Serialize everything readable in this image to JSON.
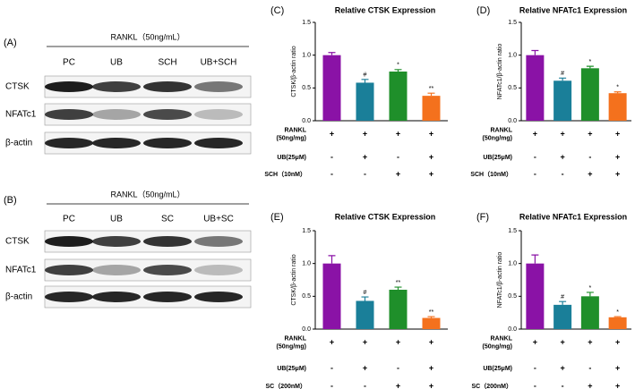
{
  "blots": [
    {
      "panel": "(A)",
      "header": "RANKL（50ng/mL）",
      "lanes": [
        "PC",
        "UB",
        "SCH",
        "UB+SCH"
      ],
      "rows": [
        "CTSK",
        "NFATc1",
        "β-actin"
      ]
    },
    {
      "panel": "(B)",
      "header": "RANKL（50ng/mL）",
      "lanes": [
        "PC",
        "UB",
        "SC",
        "UB+SC"
      ],
      "rows": [
        "CTSK",
        "NFATc1",
        "β-actin"
      ]
    }
  ],
  "chart_data": [
    {
      "type": "bar",
      "panel": "(C)",
      "title": "Relative CTSK  Expression",
      "ylabel": "CTSK/β-actin ratio",
      "categories": [
        null,
        null,
        null,
        null
      ],
      "series": [
        {
          "colors": [
            "#8a12a6",
            "#1a7f99",
            "#1f8f2a",
            "#f4711d"
          ],
          "values": [
            1.0,
            0.58,
            0.75,
            0.38
          ],
          "errors": [
            0.04,
            0.05,
            0.03,
            0.04
          ],
          "annotations": [
            null,
            "#",
            "*",
            "**"
          ]
        }
      ],
      "ylim": [
        0,
        1.5
      ],
      "yticks": [
        {
          "value": 0,
          "label": "0.0"
        },
        {
          "value": 0.5,
          "label": "0.5"
        },
        {
          "value": 1,
          "label": "1.0"
        },
        {
          "value": 1.5,
          "label": "1.5"
        }
      ],
      "treatments": [
        {
          "label": [
            "RANKL",
            "(50ng/mg)"
          ],
          "signs": [
            "+",
            "+",
            "+",
            "+"
          ]
        },
        {
          "label": [
            "UB(25μM)"
          ],
          "signs": [
            "-",
            "+",
            "-",
            "+"
          ]
        },
        {
          "label": [
            "SCH（10nM）"
          ],
          "signs": [
            "-",
            "-",
            "+",
            "+"
          ]
        }
      ]
    },
    {
      "type": "bar",
      "panel": "(D)",
      "title": "Relative NFATc1 Expression",
      "ylabel": "NFATc1/β-actin ratio",
      "categories": [
        null,
        null,
        null,
        null
      ],
      "series": [
        {
          "colors": [
            "#8a12a6",
            "#1a7f99",
            "#1f8f2a",
            "#f4711d"
          ],
          "values": [
            1.0,
            0.61,
            0.8,
            0.42
          ],
          "errors": [
            0.07,
            0.04,
            0.03,
            0.02
          ],
          "annotations": [
            null,
            "#",
            "*",
            "*"
          ]
        }
      ],
      "ylim": [
        0,
        1.5
      ],
      "yticks": [
        {
          "value": 0,
          "label": "0.0"
        },
        {
          "value": 0.5,
          "label": "0.5"
        },
        {
          "value": 1,
          "label": "1.0"
        },
        {
          "value": 1.5,
          "label": "1.5"
        }
      ],
      "treatments": [
        {
          "label": [
            "RANKL",
            "(50ng/mg)"
          ],
          "signs": [
            "+",
            "+",
            "+",
            "+"
          ]
        },
        {
          "label": [
            "UB(25μM)"
          ],
          "signs": [
            "-",
            "+",
            "-",
            "+"
          ]
        },
        {
          "label": [
            "SCH（10nM）"
          ],
          "signs": [
            "-",
            "-",
            "+",
            "+"
          ]
        }
      ]
    },
    {
      "type": "bar",
      "panel": "(E)",
      "title": "Relative CTSK  Expression",
      "ylabel": "CTSK/β-actin ratio",
      "categories": [
        null,
        null,
        null,
        null
      ],
      "series": [
        {
          "colors": [
            "#8a12a6",
            "#1a7f99",
            "#1f8f2a",
            "#f4711d"
          ],
          "values": [
            1.0,
            0.43,
            0.6,
            0.17
          ],
          "errors": [
            0.12,
            0.06,
            0.04,
            0.02
          ],
          "annotations": [
            null,
            "#",
            "**",
            "**"
          ]
        }
      ],
      "ylim": [
        0,
        1.5
      ],
      "yticks": [
        {
          "value": 0,
          "label": "0.0"
        },
        {
          "value": 0.5,
          "label": "0.5"
        },
        {
          "value": 1,
          "label": "1.0"
        },
        {
          "value": 1.5,
          "label": "1.5"
        }
      ],
      "treatments": [
        {
          "label": [
            "RANKL",
            "(50ng/mg)"
          ],
          "signs": [
            "+",
            "+",
            "+",
            "+"
          ]
        },
        {
          "label": [
            "UB(25μM)"
          ],
          "signs": [
            "-",
            "+",
            "-",
            "+"
          ]
        },
        {
          "label": [
            "SC（200nM）"
          ],
          "signs": [
            "-",
            "-",
            "+",
            "+"
          ]
        }
      ]
    },
    {
      "type": "bar",
      "panel": "(F)",
      "title": "Relative NFATc1 Expression",
      "ylabel": "NFATc1/β-actin ratio",
      "categories": [
        null,
        null,
        null,
        null
      ],
      "series": [
        {
          "colors": [
            "#8a12a6",
            "#1a7f99",
            "#1f8f2a",
            "#f4711d"
          ],
          "values": [
            1.0,
            0.37,
            0.5,
            0.18
          ],
          "errors": [
            0.13,
            0.05,
            0.06,
            0.01
          ],
          "annotations": [
            null,
            "#",
            "*",
            "*"
          ]
        }
      ],
      "ylim": [
        0,
        1.5
      ],
      "yticks": [
        {
          "value": 0,
          "label": "0.0"
        },
        {
          "value": 0.5,
          "label": "0.5"
        },
        {
          "value": 1,
          "label": "1.0"
        },
        {
          "value": 1.5,
          "label": "1.5"
        }
      ],
      "treatments": [
        {
          "label": [
            "RANKL",
            "(50ng/mg)"
          ],
          "signs": [
            "+",
            "+",
            "+",
            "+"
          ]
        },
        {
          "label": [
            "UB(25μM)"
          ],
          "signs": [
            "-",
            "+",
            "-",
            "+"
          ]
        },
        {
          "label": [
            "SC（200nM）"
          ],
          "signs": [
            "-",
            "-",
            "+",
            "+"
          ]
        }
      ]
    }
  ]
}
